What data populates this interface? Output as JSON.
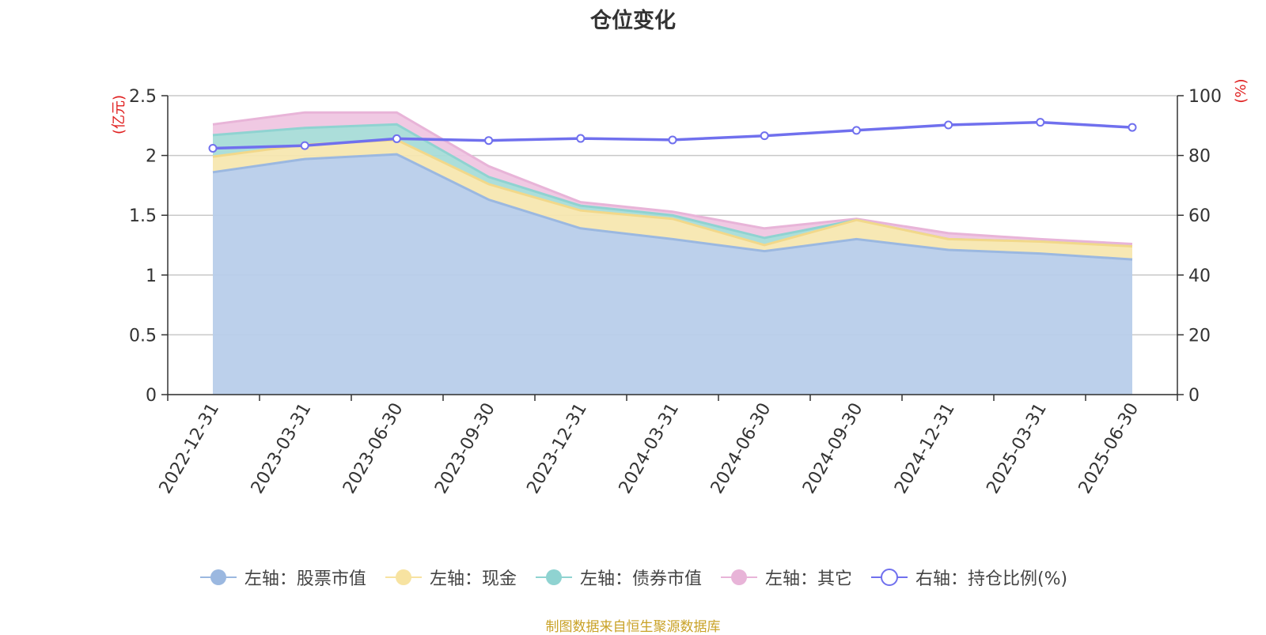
{
  "title": "仓位变化",
  "source_note": "制图数据来自恒生聚源数据库",
  "left_axis_unit": "(亿元)",
  "right_axis_unit": "(%)",
  "legend": [
    {
      "label": "左轴：股票市值",
      "color": "#9bb8e0",
      "marker": "filled-circle"
    },
    {
      "label": "左轴：现金",
      "color": "#f7e3a1",
      "marker": "filled-circle"
    },
    {
      "label": "左轴：债券市值",
      "color": "#8fd3d1",
      "marker": "filled-circle"
    },
    {
      "label": "左轴：其它",
      "color": "#e8b4d8",
      "marker": "filled-circle"
    },
    {
      "label": "右轴：持仓比例(%)",
      "color": "#7070ee",
      "marker": "hollow-circle"
    }
  ],
  "chart_data": {
    "type": "area",
    "stacked": true,
    "title": "仓位变化",
    "categories": [
      "2022-12-31",
      "2023-03-31",
      "2023-06-30",
      "2023-09-30",
      "2023-12-31",
      "2024-03-31",
      "2024-06-30",
      "2024-09-30",
      "2024-12-31",
      "2025-03-31",
      "2025-06-30"
    ],
    "left_axis": {
      "unit": "(亿元)",
      "ylim": [
        0,
        2.5
      ],
      "ticks": [
        "0",
        "0.5",
        "1",
        "1.5",
        "2",
        "2.5"
      ]
    },
    "right_axis": {
      "unit": "(%)",
      "ylim": [
        0,
        100
      ],
      "ticks": [
        "0",
        "20",
        "40",
        "60",
        "80",
        "100"
      ]
    },
    "grid": true,
    "legend_position": "bottom",
    "series": [
      {
        "name": "左轴：股票市值",
        "axis": "left",
        "kind": "area",
        "color": "#9bb8e0",
        "fill": "#b8cdea",
        "values": [
          1.86,
          1.97,
          2.01,
          1.63,
          1.39,
          1.3,
          1.2,
          1.3,
          1.21,
          1.18,
          1.13
        ]
      },
      {
        "name": "左轴：现金",
        "axis": "left",
        "kind": "area",
        "color": "#f2d88a",
        "fill": "#f7e7b0",
        "values": [
          0.13,
          0.12,
          0.12,
          0.13,
          0.15,
          0.17,
          0.05,
          0.16,
          0.09,
          0.1,
          0.11
        ]
      },
      {
        "name": "左轴：债券市值",
        "axis": "left",
        "kind": "area",
        "color": "#8fd3d1",
        "fill": "#a8dcd8",
        "values": [
          0.18,
          0.14,
          0.13,
          0.06,
          0.04,
          0.03,
          0.06,
          0.0,
          0.0,
          0.0,
          0.0
        ]
      },
      {
        "name": "左轴：其它",
        "axis": "left",
        "kind": "area",
        "color": "#e8b4d8",
        "fill": "#efc6e1",
        "values": [
          0.09,
          0.13,
          0.1,
          0.09,
          0.03,
          0.03,
          0.08,
          0.01,
          0.05,
          0.02,
          0.02
        ]
      },
      {
        "name": "右轴：持仓比例(%)",
        "axis": "right",
        "kind": "line",
        "color": "#7070ee",
        "values": [
          82.4,
          83.3,
          85.6,
          85.0,
          85.7,
          85.2,
          86.6,
          88.4,
          90.2,
          91.1,
          89.4
        ]
      }
    ]
  }
}
